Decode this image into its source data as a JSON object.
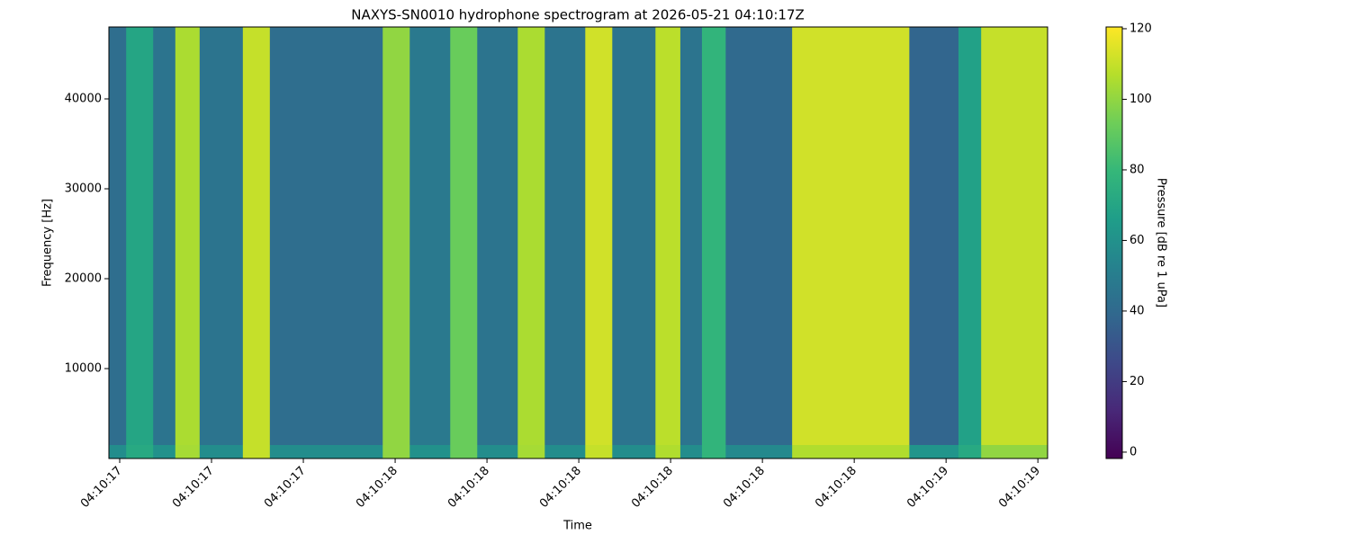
{
  "chart_data": {
    "type": "heatmap",
    "title": "NAXYS-SN0010 hydrophone spectrogram at 2026-05-21 04:10:17Z",
    "xlabel": "Time",
    "ylabel": "Frequency [Hz]",
    "colorbar_label": "Pressure [dB re 1 uPa]",
    "colormap": "viridis",
    "x_edges": [
      17.48,
      17.512,
      17.562,
      17.603,
      17.648,
      17.728,
      17.778,
      17.987,
      18.037,
      18.112,
      18.162,
      18.237,
      18.287,
      18.362,
      18.412,
      18.492,
      18.538,
      18.578,
      18.622,
      18.745,
      18.962,
      19.053,
      19.095,
      19.218
    ],
    "y_edges": [
      0,
      1500,
      48000
    ],
    "z": [
      [
        58,
        72,
        60,
        104,
        58,
        110,
        58,
        100,
        60,
        92,
        58,
        104,
        58,
        110,
        58,
        106,
        58,
        78,
        56,
        106,
        62,
        72,
        100
      ],
      [
        42,
        70,
        45,
        105,
        45,
        110,
        42,
        100,
        48,
        92,
        45,
        105,
        45,
        112,
        45,
        108,
        45,
        78,
        40,
        112,
        38,
        68,
        110
      ]
    ],
    "xlim": [
      17.48,
      19.218
    ],
    "xticks": [
      {
        "value": 17.5,
        "label": "04:10:17"
      },
      {
        "value": 17.67,
        "label": "04:10:17"
      },
      {
        "value": 17.84,
        "label": "04:10:17"
      },
      {
        "value": 18.01,
        "label": "04:10:18"
      },
      {
        "value": 18.18,
        "label": "04:10:18"
      },
      {
        "value": 18.35,
        "label": "04:10:18"
      },
      {
        "value": 18.52,
        "label": "04:10:18"
      },
      {
        "value": 18.69,
        "label": "04:10:18"
      },
      {
        "value": 18.86,
        "label": "04:10:18"
      },
      {
        "value": 19.03,
        "label": "04:10:19"
      },
      {
        "value": 19.2,
        "label": "04:10:19"
      }
    ],
    "ylim": [
      0,
      48000
    ],
    "yticks": [
      10000,
      20000,
      30000,
      40000
    ],
    "clim": [
      -1.8,
      120.5
    ],
    "cticks": [
      0,
      20,
      40,
      60,
      80,
      100,
      120
    ]
  }
}
